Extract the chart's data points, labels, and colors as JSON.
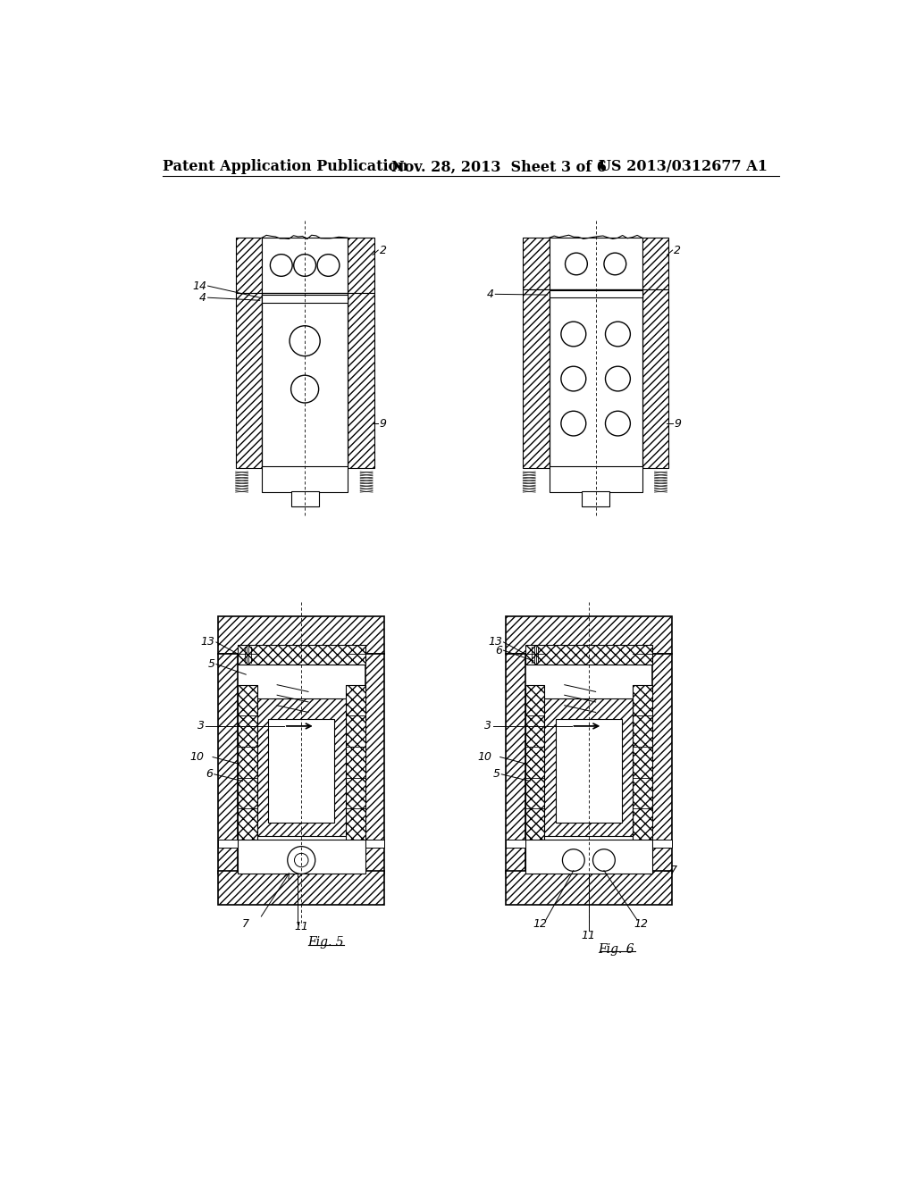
{
  "background_color": "#ffffff",
  "header_left": "Patent Application Publication",
  "header_center": "Nov. 28, 2013  Sheet 3 of 6",
  "header_right": "US 2013/0312677 A1",
  "header_fontsize": 11.5
}
